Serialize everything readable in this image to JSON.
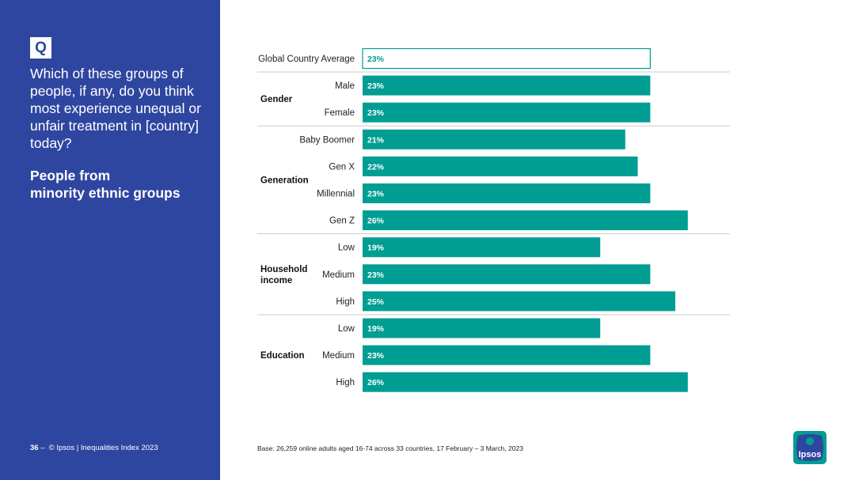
{
  "sidebar": {
    "q_label": "Q",
    "question": "Which of these groups of people, if any, do you think most experience unequal or unfair treatment in [country] today?",
    "subtitle_line1": "People from",
    "subtitle_line2": "minority ethnic groups",
    "page_number": "36",
    "page_sep": "–",
    "copyright": "© Ipsos | Inequalities Index 2023"
  },
  "base_note": "Base: 26,259 online adults aged 16-74 across 33 countries, 17 February – 3 March, 2023",
  "logo_text": "Ipsos",
  "colors": {
    "sidebar": "#2f46a0",
    "bar": "#009d93",
    "bar_outline": "#009d93",
    "divider": "#cccccc"
  },
  "chart_data": {
    "type": "bar",
    "orientation": "horizontal",
    "xlim": [
      0,
      30
    ],
    "groups": [
      {
        "name": "",
        "name_lines": [],
        "items": [
          {
            "label": "Global Country Average",
            "value": 23,
            "display": "23%",
            "highlight": true
          }
        ]
      },
      {
        "name": "Gender",
        "name_lines": [
          "Gender"
        ],
        "items": [
          {
            "label": "Male",
            "value": 23,
            "display": "23%"
          },
          {
            "label": "Female",
            "value": 23,
            "display": "23%"
          }
        ]
      },
      {
        "name": "Generation",
        "name_lines": [
          "Generation"
        ],
        "items": [
          {
            "label": "Baby Boomer",
            "value": 21,
            "display": "21%"
          },
          {
            "label": "Gen X",
            "value": 22,
            "display": "22%"
          },
          {
            "label": "Millennial",
            "value": 23,
            "display": "23%"
          },
          {
            "label": "Gen Z",
            "value": 26,
            "display": "26%"
          }
        ]
      },
      {
        "name": "Household income",
        "name_lines": [
          "Household",
          "income"
        ],
        "items": [
          {
            "label": "Low",
            "value": 19,
            "display": "19%"
          },
          {
            "label": "Medium",
            "value": 23,
            "display": "23%"
          },
          {
            "label": "High",
            "value": 25,
            "display": "25%"
          }
        ]
      },
      {
        "name": "Education",
        "name_lines": [
          "Education"
        ],
        "items": [
          {
            "label": "Low",
            "value": 19,
            "display": "19%"
          },
          {
            "label": "Medium",
            "value": 23,
            "display": "23%"
          },
          {
            "label": "High",
            "value": 26,
            "display": "26%"
          }
        ]
      }
    ]
  }
}
